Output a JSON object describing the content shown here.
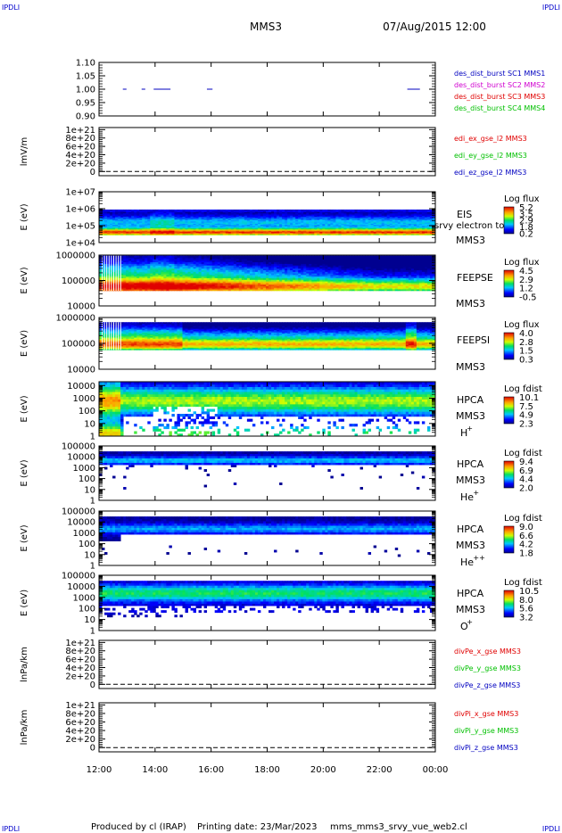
{
  "corner_label": "IPDLI",
  "header": {
    "spacecraft": "MMS3",
    "datetime": "07/Aug/2015 12:00"
  },
  "footer": {
    "producer": "Produced by cl (IRAP)",
    "print_date": "Printing date: 23/Mar/2023",
    "filename": "mms_mms3_srvy_vue_web2.cl"
  },
  "colors": {
    "red": "#e00000",
    "green": "#00c000",
    "blue": "#0000c0",
    "magenta": "#d000d0"
  },
  "chart_data": {
    "type": "heatmap",
    "time_axis": {
      "range_hours": [
        12,
        24
      ],
      "ticks": [
        12,
        14,
        16,
        18,
        20,
        22,
        24
      ],
      "tick_labels": [
        "12:00",
        "14:00",
        "16:00",
        "18:00",
        "20:00",
        "22:00",
        "00:00"
      ]
    },
    "panels": [
      {
        "id": "des-dist-burst",
        "kind": "line",
        "ylabel": "",
        "yscale": "linear",
        "yrange": [
          0.9,
          1.1
        ],
        "ticks": [
          0.9,
          0.95,
          1.0,
          1.05,
          1.1
        ],
        "tick_labels": [
          "0.90",
          "0.95",
          "1.00",
          "1.05",
          "1.10"
        ],
        "series": [
          {
            "name": "des_dist_burst SC1 MMS1",
            "color": "blue",
            "segments": [
              [
                12.85,
                12.98
              ],
              [
                13.52,
                13.65
              ],
              [
                13.95,
                14.55
              ],
              [
                15.85,
                16.05
              ],
              [
                23.0,
                23.45
              ]
            ],
            "value": 1.0
          }
        ],
        "legend": [
          {
            "text": "des_dist_burst SC1 MMS1",
            "color": "blue"
          },
          {
            "text": "des_dist_burst SC2 MMS2",
            "color": "magenta"
          },
          {
            "text": "des_dist_burst SC3 MMS3",
            "color": "red"
          },
          {
            "text": "des_dist_burst SC4 MMS4",
            "color": "green"
          }
        ]
      },
      {
        "id": "edi-e-gse",
        "kind": "line",
        "ylabel": "lmV/m",
        "yscale": "linear",
        "yrange": [
          -1e+20,
          1.05e+21
        ],
        "ticks": [
          0,
          2e+20,
          4e+20,
          6e+20,
          8e+20,
          1e+21
        ],
        "tick_labels": [
          "0",
          "2e+20",
          "4e+20",
          "6e+20",
          "8e+20",
          "1e+21"
        ],
        "zero_line": true,
        "legend": [
          {
            "text": "edi_ex_gse_l2 MMS3",
            "color": "red"
          },
          {
            "text": "edi_ey_gse_l2 MMS3",
            "color": "green"
          },
          {
            "text": "edi_ez_gse_l2 MMS3",
            "color": "blue"
          }
        ]
      },
      {
        "id": "eis",
        "kind": "spectrogram",
        "ylabel": "E (eV)",
        "yscale": "log",
        "yrange": [
          10000,
          10000000
        ],
        "ticks": [
          10000,
          100000,
          1000000,
          10000000
        ],
        "tick_labels": [
          "1e+04",
          "1e+05",
          "1e+06",
          "1e+07"
        ],
        "band_log": [
          4.45,
          5.95
        ],
        "pattern": "eis",
        "instrument": [
          "EIS",
          "MMS3"
        ],
        "overlay_text": "srvy electron to",
        "colorbar": {
          "title": "Log flux",
          "labels": [
            "5.2",
            "3.5",
            "2.9",
            "1.8",
            "0.2"
          ]
        }
      },
      {
        "id": "feeps-e",
        "kind": "spectrogram",
        "ylabel": "E (eV)",
        "yscale": "log",
        "yrange": [
          10000,
          1000000
        ],
        "ticks": [
          10000,
          100000,
          1000000
        ],
        "tick_labels": [
          "10000",
          "100000",
          "1000000"
        ],
        "band_log": [
          4.6,
          5.98
        ],
        "pattern": "feepse",
        "instrument": [
          "FEEPSE",
          "MMS3"
        ],
        "colorbar": {
          "title": "Log flux",
          "labels": [
            "4.5",
            "2.9",
            "1.2",
            "-0.5"
          ]
        }
      },
      {
        "id": "feeps-i",
        "kind": "spectrogram",
        "ylabel": "E (eV)",
        "yscale": "log",
        "yrange": [
          10000,
          1000000
        ],
        "ticks": [
          10000,
          100000,
          1000000
        ],
        "tick_labels": [
          "10000",
          "100000",
          "1000000"
        ],
        "band_log": [
          4.75,
          5.82
        ],
        "pattern": "feepsi",
        "instrument": [
          "FEEPSI",
          "MMS3"
        ],
        "colorbar": {
          "title": "Log flux",
          "labels": [
            "4.0",
            "2.8",
            "1.5",
            "0.3"
          ]
        }
      },
      {
        "id": "hpca-h",
        "kind": "spectrogram",
        "ylabel": "E (eV)",
        "yscale": "log",
        "yrange": [
          1,
          20000
        ],
        "ticks": [
          1,
          10,
          100,
          1000,
          10000
        ],
        "tick_labels": [
          "1",
          "10",
          "100",
          "1000",
          "10000"
        ],
        "band_log": [
          0,
          4.3
        ],
        "pattern": "hpca_h",
        "instrument": [
          "HPCA",
          "MMS3"
        ],
        "species": "H",
        "species_sup": "+",
        "colorbar": {
          "title": "Log fdist",
          "labels": [
            "10.1",
            "7.5",
            "4.9",
            "2.3"
          ]
        }
      },
      {
        "id": "hpca-he",
        "kind": "spectrogram",
        "ylabel": "E (eV)",
        "yscale": "log",
        "yrange": [
          1,
          100000
        ],
        "ticks": [
          1,
          10,
          100,
          1000,
          10000,
          100000
        ],
        "tick_labels": [
          "1",
          "10",
          "100",
          "1000",
          "10000",
          "100000"
        ],
        "band_log": [
          0,
          4.5
        ],
        "pattern": "hpca_he",
        "instrument": [
          "HPCA",
          "MMS3"
        ],
        "species": "He",
        "species_sup": "+",
        "colorbar": {
          "title": "Log fdist",
          "labels": [
            "9.4",
            "6.9",
            "4.4",
            "2.0"
          ]
        }
      },
      {
        "id": "hpca-hepp",
        "kind": "spectrogram",
        "ylabel": "E (eV)",
        "yscale": "log",
        "yrange": [
          1,
          100000
        ],
        "ticks": [
          1,
          10,
          100,
          1000,
          10000,
          100000
        ],
        "tick_labels": [
          "1",
          "10",
          "100",
          "1000",
          "10000",
          "100000"
        ],
        "band_log": [
          0,
          4.5
        ],
        "pattern": "hpca_hepp",
        "instrument": [
          "HPCA",
          "MMS3"
        ],
        "species": "He",
        "species_sup": "++",
        "colorbar": {
          "title": "Log fdist",
          "labels": [
            "9.0",
            "6.6",
            "4.2",
            "1.8"
          ]
        }
      },
      {
        "id": "hpca-o",
        "kind": "spectrogram",
        "ylabel": "E (eV)",
        "yscale": "log",
        "yrange": [
          1,
          100000
        ],
        "ticks": [
          1,
          10,
          100,
          1000,
          10000,
          100000
        ],
        "tick_labels": [
          "1",
          "10",
          "100",
          "1000",
          "10000",
          "100000"
        ],
        "band_log": [
          0,
          4.5
        ],
        "pattern": "hpca_o",
        "instrument": [
          "HPCA",
          "MMS3"
        ],
        "species": "O",
        "species_sup": "+",
        "colorbar": {
          "title": "Log fdist",
          "labels": [
            "10.5",
            "8.0",
            "5.6",
            "3.2"
          ]
        }
      },
      {
        "id": "divpe",
        "kind": "line",
        "ylabel": "lnPa/km",
        "yscale": "linear",
        "yrange": [
          -1e+20,
          1.05e+21
        ],
        "ticks": [
          0,
          2e+20,
          4e+20,
          6e+20,
          8e+20,
          1e+21
        ],
        "tick_labels": [
          "0",
          "2e+20",
          "4e+20",
          "6e+20",
          "8e+20",
          "1e+21"
        ],
        "zero_line": true,
        "legend": [
          {
            "text": "divPe_x_gse MMS3",
            "color": "red"
          },
          {
            "text": "divPe_y_gse MMS3",
            "color": "green"
          },
          {
            "text": "divPe_z_gse MMS3",
            "color": "blue"
          }
        ]
      },
      {
        "id": "divpi",
        "kind": "line",
        "ylabel": "lnPa/km",
        "yscale": "linear",
        "yrange": [
          -1e+20,
          1.05e+21
        ],
        "ticks": [
          0,
          2e+20,
          4e+20,
          6e+20,
          8e+20,
          1e+21
        ],
        "tick_labels": [
          "0",
          "2e+20",
          "4e+20",
          "6e+20",
          "8e+20",
          "1e+21"
        ],
        "zero_line": true,
        "legend": [
          {
            "text": "divPi_x_gse MMS3",
            "color": "red"
          },
          {
            "text": "divPi_y_gse MMS3",
            "color": "green"
          },
          {
            "text": "divPi_z_gse MMS3",
            "color": "blue"
          }
        ]
      }
    ]
  }
}
